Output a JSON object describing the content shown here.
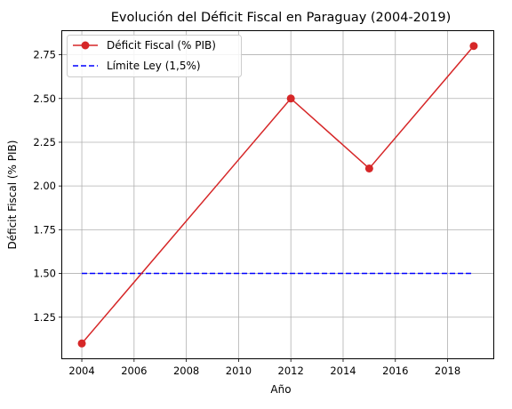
{
  "chart_data": {
    "type": "line",
    "title": "Evolución del Déficit Fiscal en Paraguay (2004-2019)",
    "xlabel": "Año",
    "ylabel": "Déficit Fiscal (% PIB)",
    "xlim": [
      2003.25,
      2019.75
    ],
    "ylim": [
      1.015,
      2.885
    ],
    "xticks": [
      2004,
      2006,
      2008,
      2010,
      2012,
      2014,
      2016,
      2018
    ],
    "yticks": [
      1.25,
      1.5,
      1.75,
      2.0,
      2.25,
      2.5,
      2.75
    ],
    "ytick_labels": [
      "1.25",
      "1.50",
      "1.75",
      "2.00",
      "2.25",
      "2.50",
      "2.75"
    ],
    "grid": true,
    "legend_position": "top-left",
    "series": [
      {
        "name": "Déficit Fiscal (% PIB)",
        "style": "solid-with-markers",
        "color": "#d62728",
        "x": [
          2004,
          2012,
          2015,
          2019
        ],
        "y": [
          1.1,
          2.5,
          2.1,
          2.8
        ]
      },
      {
        "name": "Límite Ley (1,5%)",
        "style": "dashed",
        "color": "#0000ff",
        "x": [
          2004,
          2019
        ],
        "y": [
          1.5,
          1.5
        ]
      }
    ]
  }
}
